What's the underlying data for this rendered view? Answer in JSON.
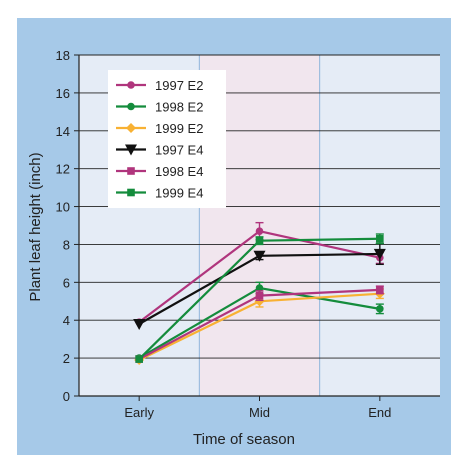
{
  "chart_data": {
    "type": "line",
    "xlabel": "Time of season",
    "ylabel": "Plant leaf height (inch)",
    "categories": [
      "Early",
      "Mid",
      "End"
    ],
    "ylim": [
      0,
      18
    ],
    "yticks": [
      "0",
      "2",
      "4",
      "6",
      "8",
      "10",
      "12",
      "14",
      "16",
      "18"
    ],
    "grid": true,
    "legend_position": "top-left",
    "band_colors": [
      "#e5ecf6",
      "#f1e6ee",
      "#e5ecf6"
    ],
    "series": [
      {
        "name": "1997 E2",
        "color": "#b0357d",
        "marker": "circle",
        "values": [
          3.9,
          8.7,
          7.3
        ],
        "errors": [
          0.1,
          0.45,
          0.3
        ]
      },
      {
        "name": "1998 E2",
        "color": "#148c3c",
        "marker": "circle",
        "values": [
          2.0,
          5.7,
          4.6
        ],
        "errors": [
          0.1,
          0.3,
          0.25
        ]
      },
      {
        "name": "1999 E2",
        "color": "#f8b133",
        "marker": "diamond",
        "values": [
          1.9,
          5.0,
          5.4
        ],
        "errors": [
          0.1,
          0.3,
          0.25
        ]
      },
      {
        "name": "1997 E4",
        "color": "#111111",
        "marker": "triangle-down",
        "values": [
          3.8,
          7.4,
          7.5
        ],
        "errors": [
          0.1,
          0.2,
          0.55
        ]
      },
      {
        "name": "1998 E4",
        "color": "#b0357d",
        "marker": "square",
        "values": [
          1.95,
          5.3,
          5.6
        ],
        "errors": [
          0.1,
          0.25,
          0.2
        ]
      },
      {
        "name": "1999 E4",
        "color": "#148c3c",
        "marker": "square",
        "values": [
          1.95,
          8.2,
          8.3
        ],
        "errors": [
          0.1,
          0.2,
          0.25
        ]
      }
    ]
  }
}
